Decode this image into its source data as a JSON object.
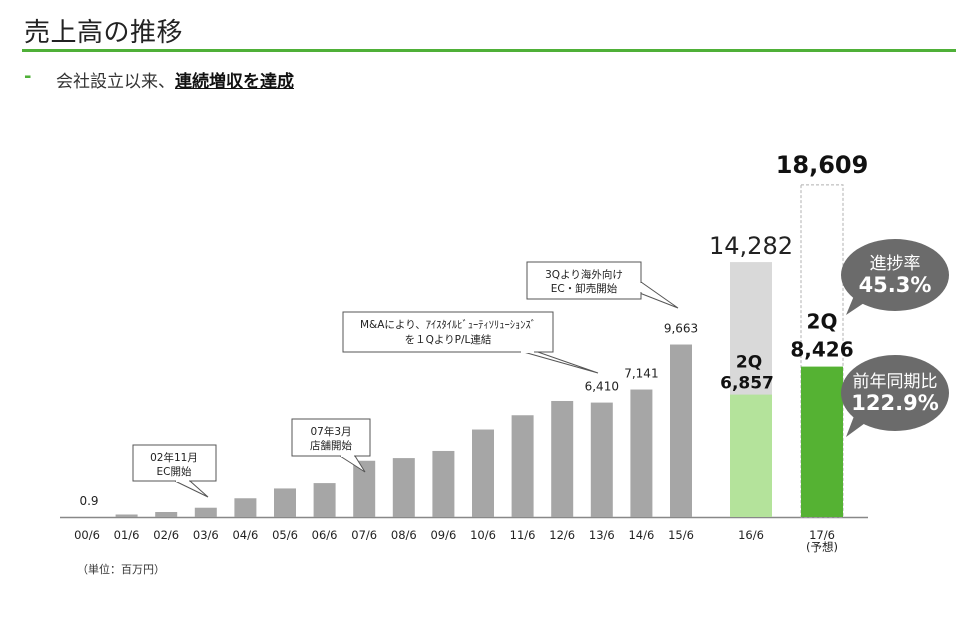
{
  "page": {
    "title": "売上高の推移",
    "subtitle_prefix": "会社設立以来、",
    "subtitle_emphasis": "連続増収を達成",
    "subtitle_dash": "-",
    "unit_note": "（単位：百万円）"
  },
  "colors": {
    "accent_green": "#4fb038",
    "bar_gray": "#a6a6a6",
    "bar_light_gray": "#d9d9d9",
    "bar_light_green": "#b4e39b",
    "bar_green": "#55b233",
    "bubble_gray": "#6b6b6b"
  },
  "chart_data": {
    "type": "bar",
    "title": "",
    "xlabel": "",
    "ylabel": "",
    "ylim": [
      0,
      20000
    ],
    "grid": false,
    "legend": "none",
    "categories": [
      "00/6",
      "01/6",
      "02/6",
      "03/6",
      "04/6",
      "05/6",
      "06/6",
      "07/6",
      "08/6",
      "09/6",
      "10/6",
      "11/6",
      "12/6",
      "13/6",
      "14/6",
      "15/6",
      "16/6",
      "17/6"
    ],
    "category_notes": {
      "17/6": "(予想)"
    },
    "values": [
      0.9,
      140,
      280,
      520,
      1050,
      1600,
      1900,
      3150,
      3300,
      3700,
      4900,
      5700,
      6500,
      6410,
      7141,
      9663,
      14282,
      18609
    ],
    "data_labels": [
      {
        "category": "00/6",
        "text": "0.9"
      },
      {
        "category": "13/6",
        "text": "6,410"
      },
      {
        "category": "14/6",
        "text": "7,141"
      },
      {
        "category": "15/6",
        "text": "9,663"
      },
      {
        "category": "16/6",
        "text": "14,282"
      },
      {
        "category": "17/6",
        "text": "18,609"
      }
    ],
    "segments": [
      {
        "category": "16/6",
        "label": "2Q",
        "value": 6857,
        "value_text": "6,857"
      },
      {
        "category": "17/6",
        "label": "2Q",
        "value": 8426,
        "value_text": "8,426"
      }
    ],
    "bubbles": [
      {
        "label": "進捗率",
        "value": "45.3%"
      },
      {
        "label": "前年同期比",
        "value": "122.9%"
      }
    ],
    "annotations": [
      {
        "category": "02/6",
        "lines": [
          "02年11月",
          "EC開始"
        ]
      },
      {
        "category": "07/6",
        "lines": [
          "07年3月",
          "店舗開始"
        ]
      },
      {
        "category": "13/6",
        "lines": [
          "M&Aにより、ｱｲｽﾀｲﾙﾋﾞｭｰﾃｨｿﾘｭｰｼｮﾝｽﾞ",
          "を１QよりP/L連結"
        ]
      },
      {
        "category": "15/6",
        "lines": [
          "3Qより海外向け",
          "EC・卸売開始"
        ]
      }
    ]
  }
}
